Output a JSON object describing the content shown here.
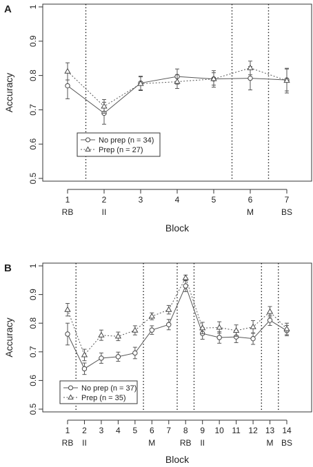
{
  "chart_data": [
    {
      "type": "line",
      "panel": "A",
      "xlabel": "Block",
      "ylabel": "Accuracy",
      "ylim": [
        0.5,
        1.0
      ],
      "yticks": [
        "0.5",
        "0.6",
        "0.7",
        "0.8",
        "0.9",
        "1"
      ],
      "x": [
        1,
        2,
        3,
        4,
        5,
        6,
        7
      ],
      "x_tick_labels": [
        [
          "1",
          "RB"
        ],
        [
          "2",
          "II"
        ],
        [
          "3",
          ""
        ],
        [
          "4",
          ""
        ],
        [
          "5",
          ""
        ],
        [
          "6",
          "M"
        ],
        [
          "7",
          "BS"
        ]
      ],
      "vlines": [
        1.5,
        5.5,
        6.5
      ],
      "legend_position": "lower-left",
      "series": [
        {
          "name": "No prep (n = 34)",
          "marker": "circle",
          "linestyle": "solid",
          "values": [
            0.77,
            0.69,
            0.778,
            0.797,
            0.79,
            0.792,
            0.787
          ],
          "errors": [
            0.038,
            0.032,
            0.02,
            0.022,
            0.024,
            0.034,
            0.032
          ]
        },
        {
          "name": "Prep (n = 27)",
          "marker": "triangle",
          "linestyle": "dotted",
          "values": [
            0.812,
            0.71,
            0.776,
            0.782,
            0.79,
            0.822,
            0.785
          ],
          "errors": [
            0.025,
            0.02,
            0.02,
            0.02,
            0.018,
            0.02,
            0.036
          ]
        }
      ]
    },
    {
      "type": "line",
      "panel": "B",
      "xlabel": "Block",
      "ylabel": "Accuracy",
      "ylim": [
        0.5,
        1.0
      ],
      "yticks": [
        "0.5",
        "0.6",
        "0.7",
        "0.8",
        "0.9",
        "1"
      ],
      "x": [
        1,
        2,
        3,
        4,
        5,
        6,
        7,
        8,
        9,
        10,
        11,
        12,
        13,
        14
      ],
      "x_tick_labels": [
        [
          "1",
          "RB"
        ],
        [
          "2",
          "II"
        ],
        [
          "3",
          ""
        ],
        [
          "4",
          ""
        ],
        [
          "5",
          ""
        ],
        [
          "6",
          "M"
        ],
        [
          "7",
          ""
        ],
        [
          "8",
          "RB"
        ],
        [
          "9",
          "II"
        ],
        [
          "10",
          ""
        ],
        [
          "11",
          ""
        ],
        [
          "12",
          ""
        ],
        [
          "13",
          "M"
        ],
        [
          "14",
          "BS"
        ]
      ],
      "vlines": [
        1.5,
        5.5,
        7.5,
        8.5,
        12.5,
        13.5
      ],
      "legend_position": "lower-left",
      "series": [
        {
          "name": "No prep (n = 37)",
          "marker": "circle",
          "linestyle": "solid",
          "values": [
            0.762,
            0.641,
            0.678,
            0.683,
            0.696,
            0.776,
            0.795,
            0.93,
            0.764,
            0.75,
            0.752,
            0.746,
            0.81,
            0.774
          ],
          "errors": [
            0.038,
            0.02,
            0.018,
            0.016,
            0.02,
            0.015,
            0.018,
            0.02,
            0.02,
            0.02,
            0.02,
            0.02,
            0.018,
            0.018
          ]
        },
        {
          "name": "Prep (n = 35)",
          "marker": "triangle",
          "linestyle": "dotted",
          "values": [
            0.847,
            0.689,
            0.758,
            0.754,
            0.775,
            0.824,
            0.847,
            0.958,
            0.783,
            0.785,
            0.774,
            0.787,
            0.84,
            0.78
          ],
          "errors": [
            0.022,
            0.02,
            0.018,
            0.015,
            0.016,
            0.012,
            0.015,
            0.01,
            0.02,
            0.02,
            0.02,
            0.022,
            0.018,
            0.02
          ]
        }
      ]
    }
  ]
}
